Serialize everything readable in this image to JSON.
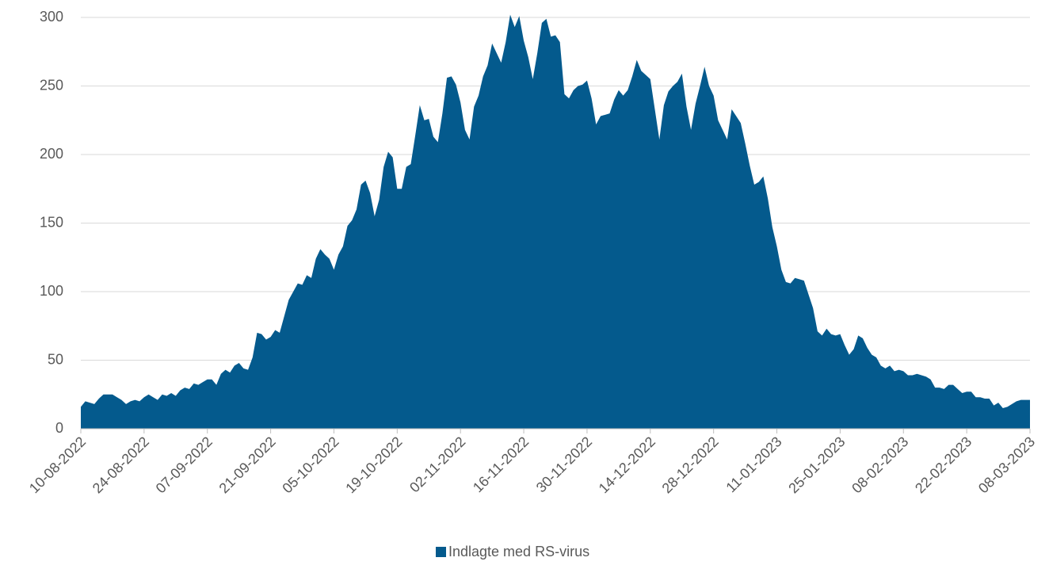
{
  "chart_data": {
    "type": "area",
    "categories": [
      "10-08-2022",
      null,
      null,
      null,
      null,
      null,
      null,
      null,
      null,
      null,
      null,
      null,
      null,
      null,
      "24-08-2022",
      null,
      null,
      null,
      null,
      null,
      null,
      null,
      null,
      null,
      null,
      null,
      null,
      null,
      "07-09-2022",
      null,
      null,
      null,
      null,
      null,
      null,
      null,
      null,
      null,
      null,
      null,
      null,
      null,
      "21-09-2022",
      null,
      null,
      null,
      null,
      null,
      null,
      null,
      null,
      null,
      null,
      null,
      null,
      null,
      "05-10-2022",
      null,
      null,
      null,
      null,
      null,
      null,
      null,
      null,
      null,
      null,
      null,
      null,
      null,
      "19-10-2022",
      null,
      null,
      null,
      null,
      null,
      null,
      null,
      null,
      null,
      null,
      null,
      null,
      null,
      "02-11-2022",
      null,
      null,
      null,
      null,
      null,
      null,
      null,
      null,
      null,
      null,
      null,
      null,
      null,
      "16-11-2022",
      null,
      null,
      null,
      null,
      null,
      null,
      null,
      null,
      null,
      null,
      null,
      null,
      null,
      "30-11-2022",
      null,
      null,
      null,
      null,
      null,
      null,
      null,
      null,
      null,
      null,
      null,
      null,
      null,
      "14-12-2022",
      null,
      null,
      null,
      null,
      null,
      null,
      null,
      null,
      null,
      null,
      null,
      null,
      null,
      "28-12-2022",
      null,
      null,
      null,
      null,
      null,
      null,
      null,
      null,
      null,
      null,
      null,
      null,
      null,
      "11-01-2023",
      null,
      null,
      null,
      null,
      null,
      null,
      null,
      null,
      null,
      null,
      null,
      null,
      null,
      "25-01-2023",
      null,
      null,
      null,
      null,
      null,
      null,
      null,
      null,
      null,
      null,
      null,
      null,
      null,
      "08-02-2023",
      null,
      null,
      null,
      null,
      null,
      null,
      null,
      null,
      null,
      null,
      null,
      null,
      null,
      "22-02-2023",
      null,
      null,
      null,
      null,
      null,
      null,
      null,
      null,
      null,
      null,
      null,
      null,
      null,
      "08-03-2023"
    ],
    "series": [
      {
        "name": "Indlagte med RS-virus",
        "color": "#045a8d",
        "values": [
          16,
          20,
          19,
          18,
          22,
          25,
          25,
          25,
          23,
          21,
          18,
          20,
          21,
          20,
          23,
          25,
          23,
          21,
          25,
          24,
          26,
          24,
          28,
          30,
          29,
          33,
          32,
          34,
          36,
          36,
          32,
          40,
          43,
          41,
          46,
          48,
          44,
          43,
          52,
          70,
          69,
          65,
          67,
          72,
          70,
          82,
          94,
          100,
          106,
          105,
          112,
          110,
          124,
          131,
          127,
          124,
          116,
          127,
          133,
          148,
          152,
          160,
          178,
          181,
          172,
          155,
          167,
          191,
          202,
          198,
          175,
          175,
          191,
          193,
          214,
          236,
          225,
          226,
          213,
          209,
          230,
          256,
          257,
          251,
          238,
          218,
          211,
          235,
          243,
          257,
          265,
          281,
          274,
          267,
          282,
          302,
          293,
          301,
          283,
          271,
          255,
          274,
          296,
          299,
          286,
          287,
          282,
          244,
          241,
          247,
          250,
          251,
          254,
          241,
          222,
          228,
          229,
          230,
          240,
          247,
          243,
          247,
          257,
          269,
          261,
          258,
          255,
          233,
          211,
          236,
          246,
          250,
          253,
          259,
          235,
          218,
          237,
          250,
          264,
          250,
          243,
          225,
          218,
          211,
          233,
          228,
          223,
          208,
          192,
          178,
          180,
          184,
          168,
          147,
          133,
          116,
          107,
          106,
          110,
          109,
          108,
          98,
          88,
          71,
          68,
          73,
          69,
          68,
          69,
          61,
          54,
          58,
          68,
          66,
          59,
          54,
          52,
          46,
          44,
          46,
          42,
          43,
          42,
          39,
          39,
          40,
          39,
          38,
          36,
          30,
          30,
          29,
          32,
          32,
          29,
          26,
          27,
          27,
          23,
          23,
          22,
          22,
          17,
          19,
          15,
          16,
          18,
          20,
          21,
          21,
          21
        ]
      }
    ],
    "ylim": [
      0,
      300
    ],
    "yticks": [
      0,
      50,
      100,
      150,
      200,
      250,
      300
    ],
    "grid": true,
    "legend": "bottom"
  }
}
